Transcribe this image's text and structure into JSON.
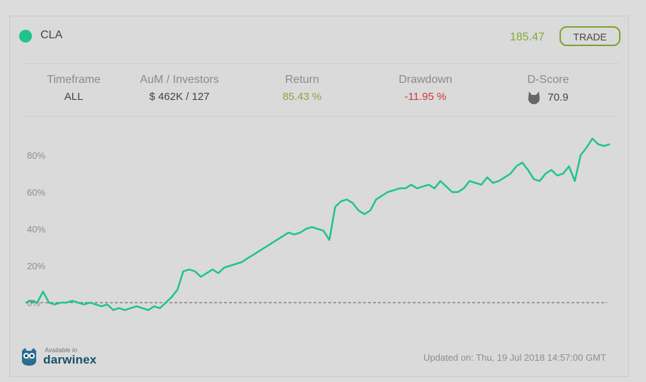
{
  "header": {
    "ticker": "CLA",
    "price": "185.47",
    "trade_label": "TRADE"
  },
  "stats": [
    {
      "label": "Timeframe",
      "value": "ALL"
    },
    {
      "label": "AuM / Investors",
      "value": "$ 462K / 127"
    },
    {
      "label": "Return",
      "value": "85.43 %"
    },
    {
      "label": "Drawdown",
      "value": "-11.95 %"
    },
    {
      "label": "D-Score",
      "value": "70.9",
      "icon": "wolf-icon"
    }
  ],
  "colors": {
    "accent": "#1ec48a",
    "price": "#86a83b",
    "positive": "#86a83b",
    "negative": "#cc3a36",
    "brand": "#1a4e6c"
  },
  "chart_data": {
    "type": "line",
    "ytick_labels": [
      "0%",
      "20%",
      "40%",
      "60%",
      "80%"
    ],
    "ylim": [
      -5,
      90
    ],
    "baseline": 0,
    "x": [
      0,
      1,
      2,
      3,
      4,
      5,
      6,
      7,
      8,
      9,
      10,
      11,
      12,
      13,
      14,
      15,
      16,
      17,
      18,
      19,
      20,
      21,
      22,
      23,
      24,
      25,
      26,
      27,
      28,
      29,
      30,
      31,
      32,
      33,
      34,
      35,
      36,
      37,
      38,
      39,
      40,
      41,
      42,
      43,
      44,
      45,
      46,
      47,
      48,
      49,
      50,
      51,
      52,
      53,
      54,
      55,
      56,
      57,
      58,
      59,
      60,
      61,
      62,
      63,
      64,
      65,
      66,
      67,
      68,
      69,
      70,
      71,
      72,
      73,
      74,
      75,
      76,
      77,
      78,
      79,
      80,
      81,
      82,
      83,
      84,
      85,
      86,
      87,
      88,
      89,
      90,
      91,
      92,
      93,
      94,
      95,
      96,
      97,
      98,
      99,
      100
    ],
    "series": [
      {
        "values": [
          0,
          1,
          0,
          6,
          0,
          -1,
          0,
          0,
          1,
          0,
          -1,
          0,
          -1,
          -2,
          -1,
          -4,
          -3,
          -4,
          -3,
          -2,
          -3,
          -4,
          -2,
          -3,
          0,
          3,
          7,
          17,
          18,
          17,
          14,
          16,
          18,
          16,
          19,
          20,
          21,
          22,
          24,
          26,
          28,
          30,
          32,
          34,
          36,
          38,
          37,
          38,
          40,
          41,
          40,
          39,
          34,
          52,
          55,
          56,
          54,
          50,
          48,
          50,
          56,
          58,
          60,
          61,
          62,
          62,
          64,
          62,
          63,
          64,
          62,
          66,
          63,
          60,
          60,
          62,
          66,
          65,
          64,
          68,
          65,
          66,
          68,
          70,
          74,
          76,
          72,
          67,
          66,
          70,
          72,
          69,
          70,
          74,
          66,
          80,
          84,
          89,
          86,
          85,
          86
        ]
      }
    ]
  },
  "footer": {
    "available_in": "Available in",
    "brand": "darwinex",
    "updated": "Updated on: Thu, 19 Jul 2018 14:57:00 GMT"
  }
}
